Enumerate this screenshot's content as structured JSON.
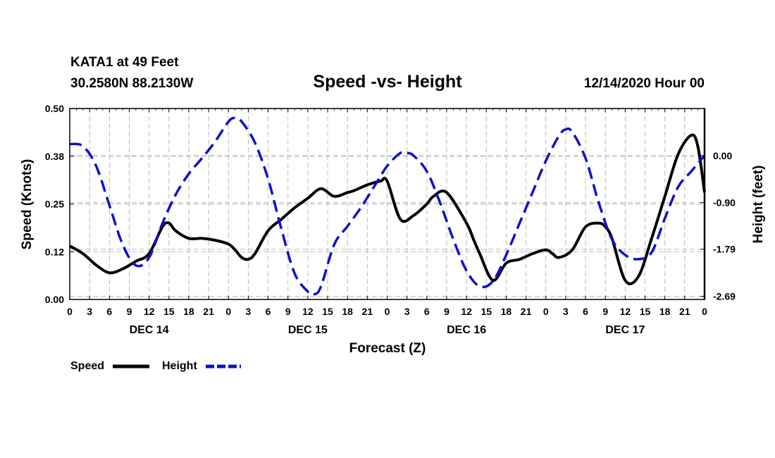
{
  "header": {
    "station": "KATA1 at 49 Feet",
    "coords": "30.2580N 88.2130W",
    "date": "12/14/2020 Hour 00"
  },
  "chart_data": {
    "type": "line",
    "title": "Speed -vs- Height",
    "xlabel": "Forecast (Z)",
    "ylabel_left": "Speed (Knots)",
    "ylabel_right": "Height (feet)",
    "x_range_hours": [
      0,
      96
    ],
    "x_tick_step_hours": 3,
    "x_tick_labels": [
      "0",
      "3",
      "6",
      "9",
      "12",
      "15",
      "18",
      "21",
      "0",
      "3",
      "6",
      "9",
      "12",
      "15",
      "18",
      "21",
      "0",
      "3",
      "6",
      "9",
      "12",
      "15",
      "18",
      "21",
      "0",
      "3",
      "6",
      "9",
      "12",
      "15",
      "18",
      "21",
      "0"
    ],
    "day_labels": [
      {
        "label": "DEC 14",
        "hour": 12
      },
      {
        "label": "DEC 15",
        "hour": 36
      },
      {
        "label": "DEC 16",
        "hour": 60
      },
      {
        "label": "DEC 17",
        "hour": 84
      }
    ],
    "ylim_left": [
      0,
      0.5
    ],
    "y_ticks_left": [
      {
        "value": 0.0,
        "label": "0.00"
      },
      {
        "value": 0.125,
        "label": "0.12"
      },
      {
        "value": 0.25,
        "label": "0.25"
      },
      {
        "value": 0.375,
        "label": "0.38"
      },
      {
        "value": 0.5,
        "label": "0.50"
      }
    ],
    "ylim_right": [
      -2.75,
      0.9
    ],
    "y_ticks_right": [
      {
        "value": 0.0,
        "label": "0.00"
      },
      {
        "value": -0.9,
        "label": "-0.90"
      },
      {
        "value": -1.79,
        "label": "-1.79"
      },
      {
        "value": -2.69,
        "label": "-2.69"
      }
    ],
    "grid": true,
    "series": [
      {
        "name": "Speed",
        "axis": "left",
        "color": "#000000",
        "style": "solid",
        "x": [
          0,
          2,
          4,
          6,
          8,
          10,
          12,
          14,
          15,
          16,
          18,
          20,
          22,
          24,
          25,
          26,
          27,
          28,
          30,
          32,
          34,
          36,
          38,
          40,
          42,
          43,
          45,
          47,
          48,
          50,
          52,
          54,
          55,
          57,
          60,
          61,
          62,
          64,
          66,
          68,
          70,
          72,
          73,
          74,
          76,
          78,
          80,
          81,
          82,
          84,
          86,
          88,
          90,
          92,
          94,
          95,
          96
        ],
        "values": [
          0.14,
          0.12,
          0.09,
          0.07,
          0.08,
          0.1,
          0.12,
          0.19,
          0.2,
          0.18,
          0.16,
          0.16,
          0.155,
          0.145,
          0.13,
          0.11,
          0.105,
          0.12,
          0.18,
          0.21,
          0.24,
          0.265,
          0.29,
          0.27,
          0.28,
          0.285,
          0.3,
          0.31,
          0.31,
          0.21,
          0.22,
          0.25,
          0.27,
          0.28,
          0.2,
          0.16,
          0.12,
          0.05,
          0.095,
          0.105,
          0.12,
          0.13,
          0.12,
          0.11,
          0.13,
          0.19,
          0.2,
          0.19,
          0.16,
          0.05,
          0.06,
          0.16,
          0.27,
          0.38,
          0.43,
          0.4,
          0.28
        ]
      },
      {
        "name": "Height",
        "axis": "right",
        "color": "#1010cc",
        "style": "dashed",
        "x": [
          0,
          2,
          4,
          6,
          8,
          10,
          12,
          14,
          16,
          18,
          20,
          22,
          24,
          25,
          26,
          28,
          30,
          32,
          34,
          36,
          37,
          38,
          40,
          42,
          44,
          46,
          48,
          50,
          51,
          52,
          54,
          56,
          58,
          60,
          62,
          64,
          66,
          68,
          70,
          72,
          74,
          75,
          76,
          78,
          80,
          82,
          84,
          86,
          88,
          90,
          92,
          94,
          96
        ],
        "values": [
          0.22,
          0.18,
          -0.2,
          -0.95,
          -1.7,
          -2.1,
          -1.95,
          -1.3,
          -0.75,
          -0.35,
          -0.05,
          0.27,
          0.65,
          0.72,
          0.65,
          0.25,
          -0.45,
          -1.4,
          -2.25,
          -2.6,
          -2.65,
          -2.5,
          -1.7,
          -1.35,
          -1.0,
          -0.6,
          -0.2,
          0.05,
          0.05,
          0.0,
          -0.3,
          -0.9,
          -1.6,
          -2.2,
          -2.5,
          -2.4,
          -1.9,
          -1.3,
          -0.7,
          -0.1,
          0.38,
          0.5,
          0.45,
          -0.05,
          -0.9,
          -1.6,
          -1.9,
          -1.98,
          -1.85,
          -1.2,
          -0.6,
          -0.3,
          0.0
        ]
      }
    ]
  },
  "legend": {
    "speed_label": "Speed",
    "height_label": "Height"
  }
}
